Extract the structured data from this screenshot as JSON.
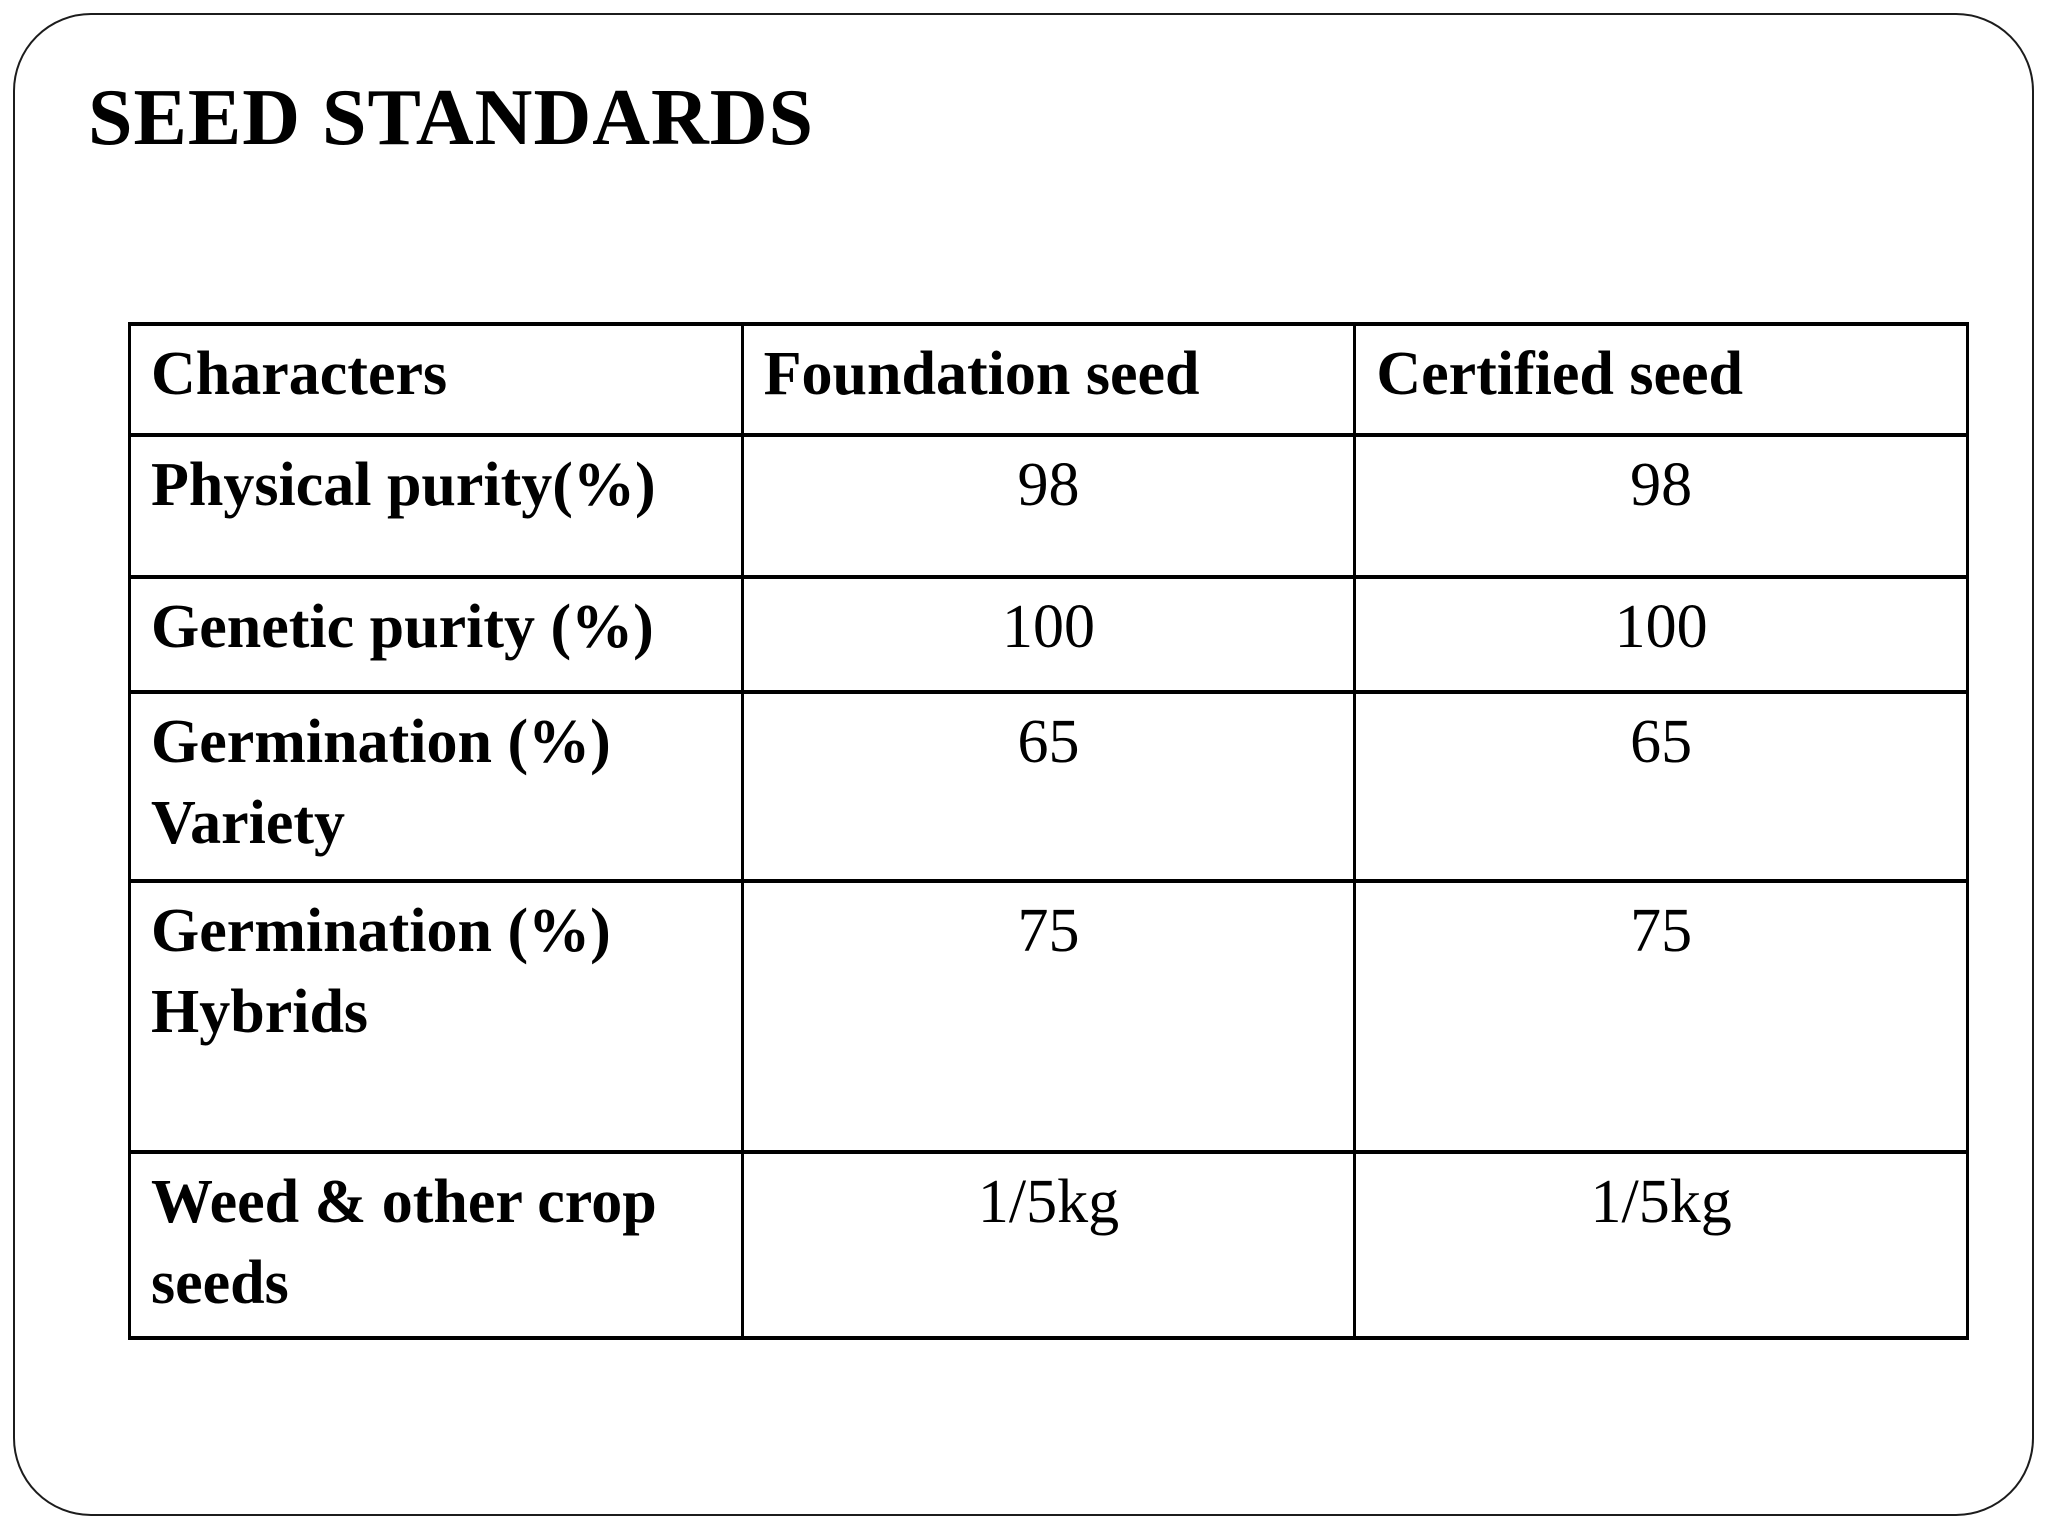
{
  "slide": {
    "title": "SEED STANDARDS",
    "background_color": "#ffffff",
    "border_color": "#1c1c1c",
    "text_color": "#000000"
  },
  "table": {
    "headers": [
      "Characters",
      "Foundation seed",
      "Certified seed"
    ],
    "rows": [
      {
        "label": "Physical purity(%)",
        "foundation": "98",
        "certified": "98"
      },
      {
        "label": "Genetic purity (%)",
        "foundation": "100",
        "certified": "100"
      },
      {
        "label": "Germination (%)\nVariety",
        "foundation": "65",
        "certified": "65"
      },
      {
        "label": "Germination (%)\nHybrids",
        "foundation": "75",
        "certified": "75"
      },
      {
        "label": "Weed & other crop\nseeds",
        "foundation": "1/5kg",
        "certified": "1/5kg"
      }
    ]
  }
}
